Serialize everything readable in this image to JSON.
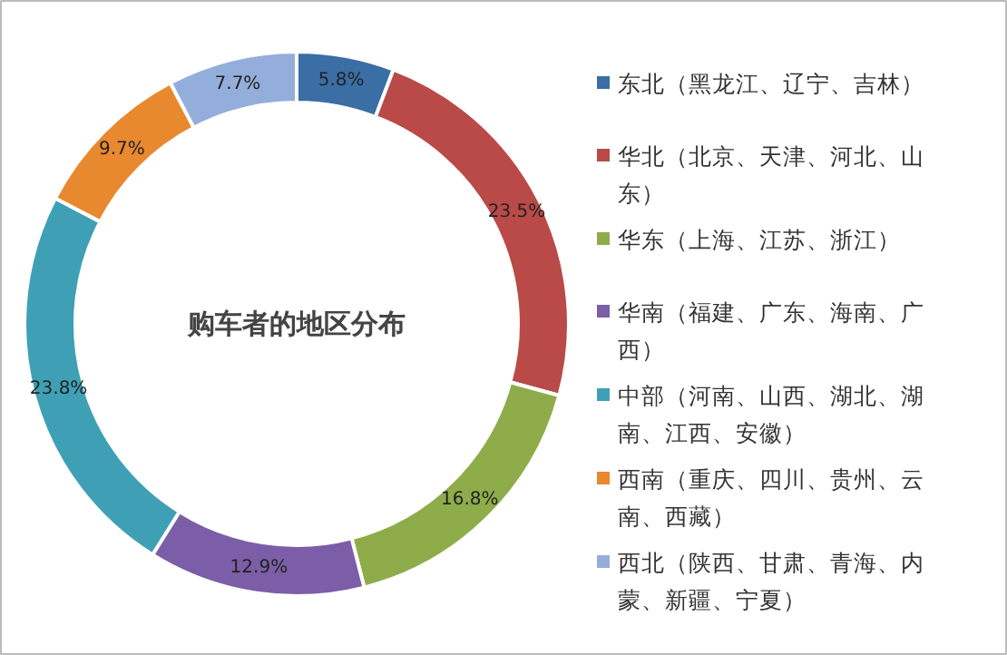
{
  "chart_data": {
    "type": "donut",
    "title": "购车者的地区分布",
    "categories": [
      "东北（黑龙江、辽宁、吉林）",
      "华北（北京、天津、河北、山东）",
      "华东（上海、江苏、浙江）",
      "华南（福建、广东、海南、广西）",
      "中部（河南、山西、湖北、湖南、江西、安徽）",
      "西南（重庆、四川、贵州、云南、西藏）",
      "西北（陕西、甘肃、青海、内蒙、新疆、宁夏）"
    ],
    "values": [
      5.8,
      23.5,
      16.8,
      12.9,
      23.8,
      9.7,
      7.7
    ],
    "colors": [
      "#3a6ea5",
      "#b94a48",
      "#8eac4a",
      "#7b5ea7",
      "#3fa0b5",
      "#e8882f",
      "#94aedb"
    ],
    "value_labels": [
      "5.8%",
      "23.5%",
      "16.8%",
      "12.9%",
      "23.8%",
      "9.7%",
      "7.7%"
    ],
    "legend": "right"
  }
}
